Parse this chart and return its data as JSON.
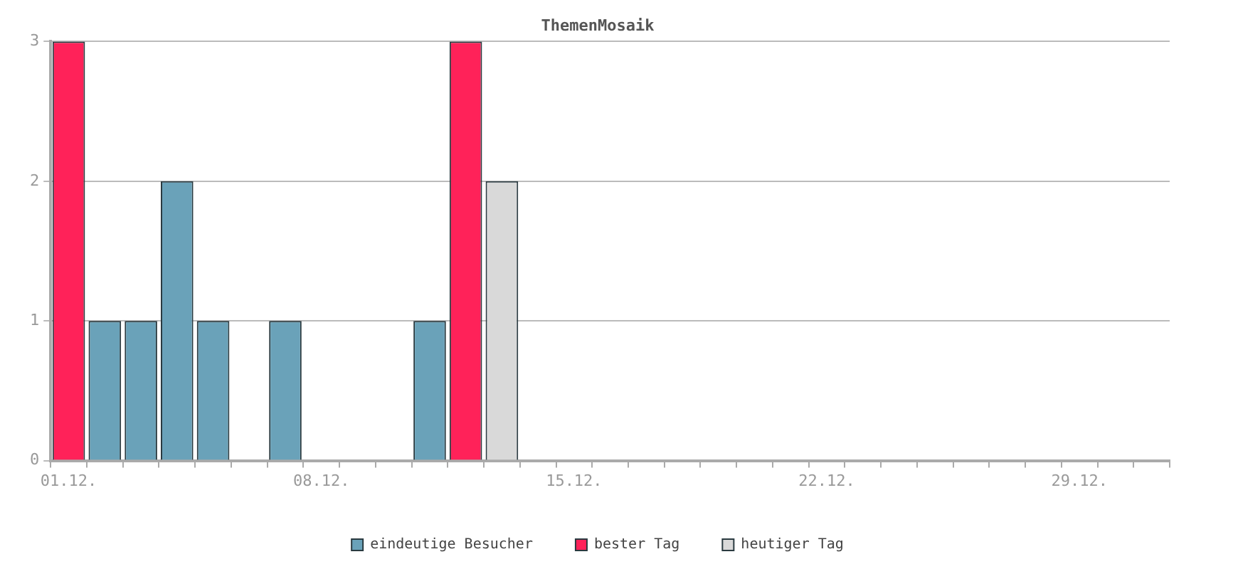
{
  "chart_data": {
    "type": "bar",
    "title": "ThemenMosaik",
    "categories": [
      "01.12.",
      null,
      null,
      null,
      null,
      null,
      null,
      "08.12.",
      null,
      null,
      null,
      null,
      null,
      null,
      "15.12.",
      null,
      null,
      null,
      null,
      null,
      null,
      "22.12.",
      null,
      null,
      null,
      null,
      null,
      null,
      "29.12.",
      null,
      null
    ],
    "series": [
      {
        "name": "eindeutige Besucher",
        "color": "#6aa2b9",
        "values": [
          null,
          1,
          1,
          2,
          1,
          0,
          1,
          0,
          0,
          0,
          1,
          null,
          null,
          null,
          null,
          null,
          null,
          null,
          null,
          null,
          null,
          null,
          null,
          null,
          null,
          null,
          null,
          null,
          null,
          null,
          null
        ]
      },
      {
        "name": "bester Tag",
        "color": "#ff2259",
        "values": [
          3,
          null,
          null,
          null,
          null,
          null,
          null,
          null,
          null,
          null,
          null,
          3,
          null,
          null,
          null,
          null,
          null,
          null,
          null,
          null,
          null,
          null,
          null,
          null,
          null,
          null,
          null,
          null,
          null,
          null,
          null
        ]
      },
      {
        "name": "heutiger Tag",
        "color": "#d9d9d9",
        "values": [
          null,
          null,
          null,
          null,
          null,
          null,
          null,
          null,
          null,
          null,
          null,
          null,
          2,
          null,
          null,
          null,
          null,
          null,
          null,
          null,
          null,
          null,
          null,
          null,
          null,
          null,
          null,
          null,
          null,
          null,
          null
        ]
      }
    ],
    "stacked": true,
    "ylim": [
      0,
      3
    ],
    "yticks": [
      0,
      1,
      2,
      3
    ],
    "grid": "y",
    "legend": "bottom"
  }
}
